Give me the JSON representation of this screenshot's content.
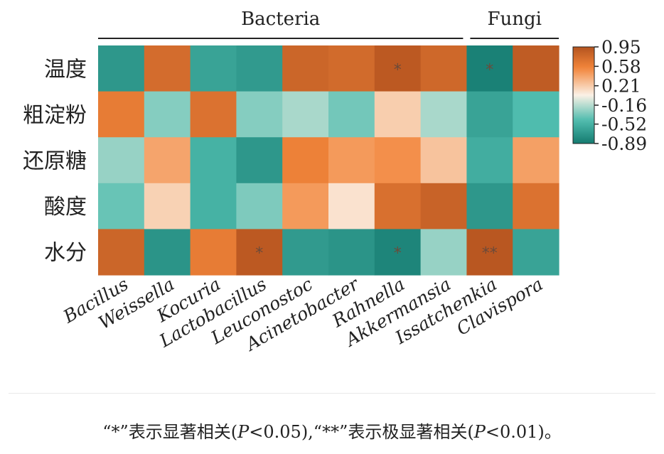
{
  "chart_data": {
    "type": "heatmap",
    "groups": [
      {
        "label": "Bacteria",
        "count": 8
      },
      {
        "label": "Fungi",
        "count": 2
      }
    ],
    "columns": [
      "Bacillus",
      "Weissella",
      "Kocuria",
      "Lactobacillus",
      "Leuconostoc",
      "Acinetobacter",
      "Rahnella",
      "Akkermansia",
      "Issatchenkia",
      "Clavispora"
    ],
    "rows": [
      "温度",
      "粗淀粉",
      "还原糖",
      "酸度",
      "水分"
    ],
    "values": [
      [
        -0.7,
        0.75,
        -0.62,
        -0.68,
        0.8,
        0.76,
        0.9,
        0.78,
        -0.85,
        0.88
      ],
      [
        0.62,
        -0.3,
        0.7,
        -0.3,
        -0.2,
        -0.35,
        0.2,
        -0.2,
        -0.62,
        -0.45
      ],
      [
        -0.25,
        0.4,
        -0.52,
        -0.7,
        0.58,
        0.45,
        0.5,
        0.25,
        -0.55,
        0.42
      ],
      [
        -0.38,
        0.18,
        -0.52,
        -0.32,
        0.45,
        0.1,
        0.72,
        0.82,
        -0.7,
        0.7
      ],
      [
        0.8,
        -0.72,
        0.62,
        0.9,
        -0.68,
        -0.72,
        -0.82,
        -0.25,
        0.92,
        -0.62
      ]
    ],
    "significance": [
      [
        "",
        "",
        "",
        "",
        "",
        "",
        "*",
        "",
        "*",
        ""
      ],
      [
        "",
        "",
        "",
        "",
        "",
        "",
        "",
        "",
        "",
        ""
      ],
      [
        "",
        "",
        "",
        "",
        "",
        "",
        "",
        "",
        "",
        ""
      ],
      [
        "",
        "",
        "",
        "",
        "",
        "",
        "",
        "",
        "",
        ""
      ],
      [
        "",
        "",
        "",
        "*",
        "",
        "",
        "*",
        "",
        "**",
        ""
      ]
    ],
    "colorbar": {
      "ticks": [
        0.95,
        0.58,
        0.21,
        -0.16,
        -0.52,
        -0.89
      ],
      "range": [
        -0.89,
        0.95
      ],
      "colors": {
        "high": "#b4531f",
        "mid_high": "#f2853a",
        "mid": "#fbf1e6",
        "mid_low": "#4fbcae",
        "low": "#157b70"
      }
    }
  },
  "caption": {
    "part1": "“*”表示显著相关(",
    "p1": "P",
    "part2": "<0.05),“**”表示极显著相关(",
    "p2": "P",
    "part3": "<0.01)。"
  }
}
